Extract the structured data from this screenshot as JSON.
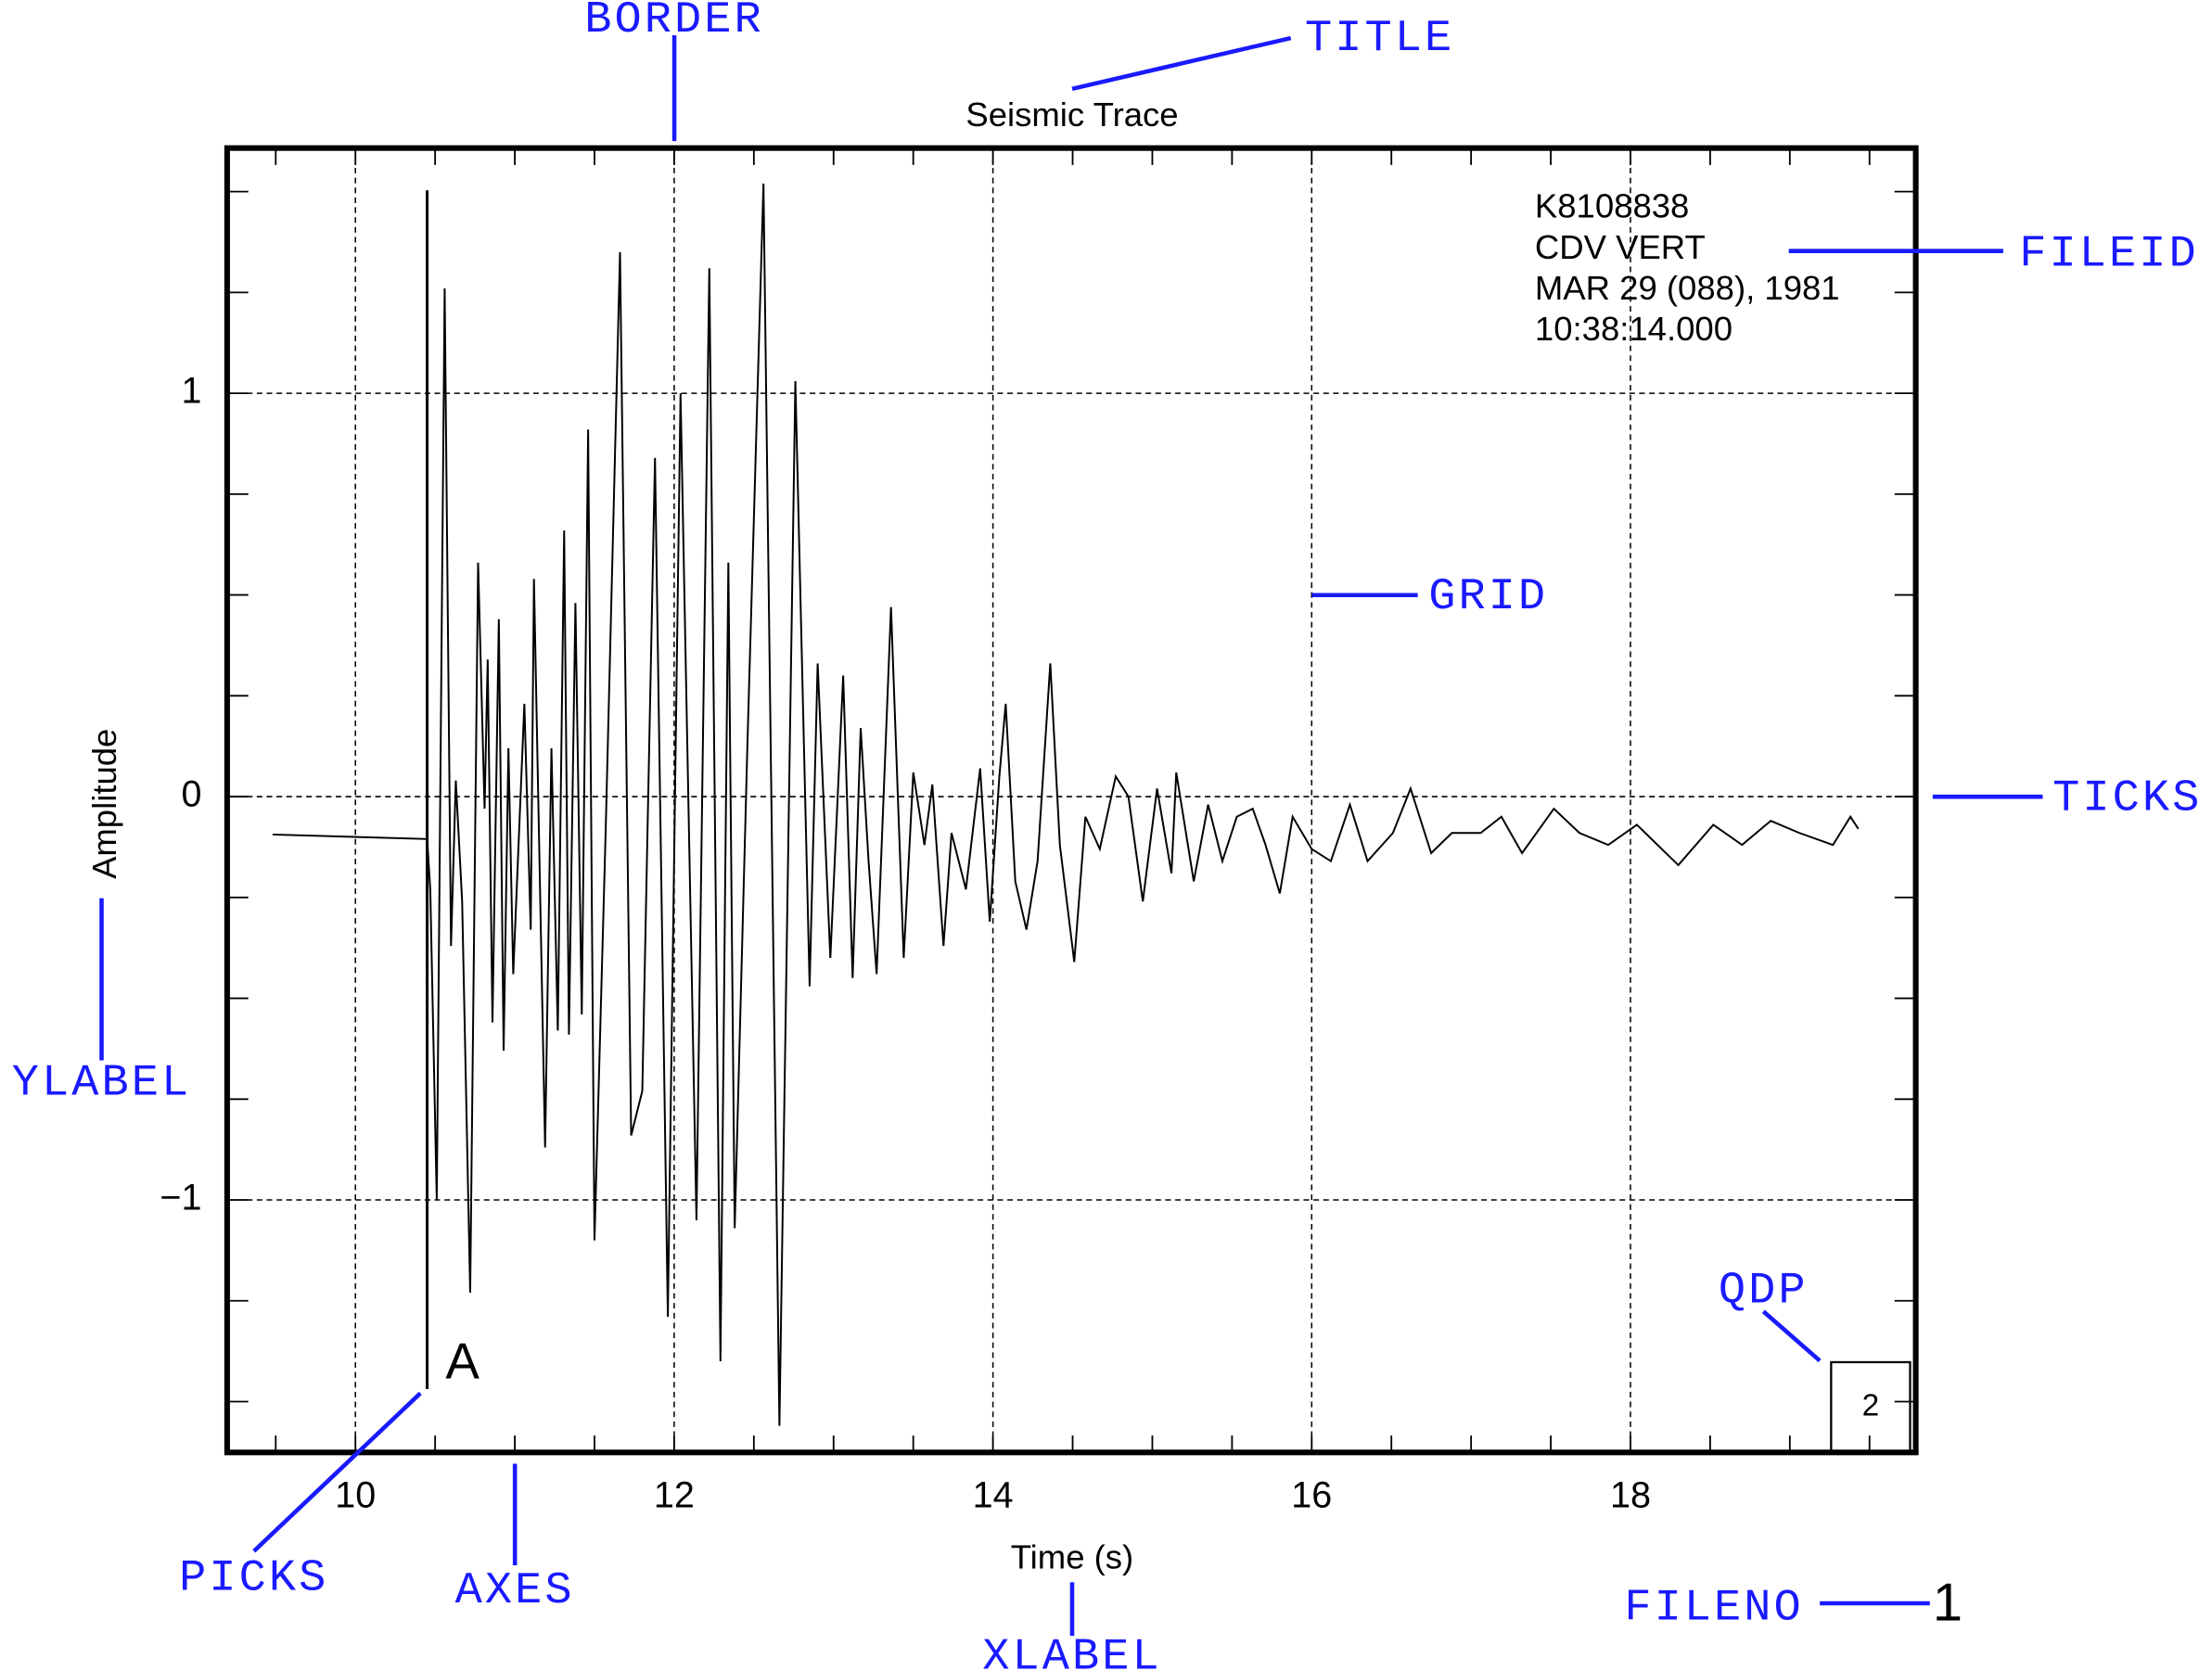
{
  "chart_data": {
    "type": "line",
    "title": "Seismic Trace",
    "xlabel": "Time (s)",
    "ylabel": "Amplitude",
    "color": "#000000",
    "grid": true,
    "xlim": [
      9.195,
      19.79
    ],
    "ylim": [
      -1.626,
      1.608
    ],
    "xticks": [
      10,
      12,
      14,
      16,
      18
    ],
    "yticks": [
      {
        "value": -1,
        "label": "−1"
      },
      0,
      1
    ],
    "xminorticks": [
      9.5,
      10,
      10.5,
      11,
      11.5,
      12,
      12.5,
      13,
      13.5,
      14,
      14.5,
      15,
      15.5,
      16,
      16.5,
      17,
      17.5,
      18,
      18.5,
      19,
      19.5
    ],
    "yminorticks": [
      -1.5,
      -1.25,
      -1,
      -0.75,
      -0.5,
      -0.25,
      0,
      0.25,
      0.5,
      0.75,
      1,
      1.25,
      1.5
    ],
    "x": [
      9.48,
      10.45,
      10.47,
      10.51,
      10.56,
      10.6,
      10.63,
      10.67,
      10.72,
      10.77,
      10.81,
      10.83,
      10.86,
      10.9,
      10.93,
      10.96,
      10.99,
      11.06,
      11.1,
      11.12,
      11.19,
      11.23,
      11.27,
      11.31,
      11.34,
      11.38,
      11.42,
      11.46,
      11.5,
      11.57,
      11.66,
      11.73,
      11.8,
      11.88,
      11.96,
      12.04,
      12.14,
      12.22,
      12.29,
      12.34,
      12.38,
      12.46,
      12.56,
      12.66,
      12.76,
      12.85,
      12.9,
      12.98,
      13.06,
      13.12,
      13.17,
      13.22,
      13.27,
      13.36,
      13.44,
      13.5,
      13.57,
      13.62,
      13.69,
      13.74,
      13.83,
      13.92,
      13.98,
      14.04,
      14.08,
      14.14,
      14.21,
      14.28,
      14.36,
      14.42,
      14.51,
      14.58,
      14.67,
      14.77,
      14.85,
      14.94,
      15.03,
      15.12,
      15.15,
      15.26,
      15.35,
      15.44,
      15.53,
      15.63,
      15.71,
      15.8,
      15.88,
      16.0,
      16.12,
      16.24,
      16.35,
      16.51,
      16.62,
      16.75,
      16.88,
      17.06,
      17.19,
      17.32,
      17.52,
      17.68,
      17.86,
      18.04,
      18.17,
      18.3,
      18.52,
      18.7,
      18.88,
      19.06,
      19.27,
      19.38,
      19.43
    ],
    "values": [
      -0.094,
      -0.105,
      -0.23,
      -1.0,
      1.26,
      -0.37,
      0.04,
      -0.26,
      -1.23,
      0.58,
      -0.03,
      0.34,
      -0.56,
      0.44,
      -0.63,
      0.12,
      -0.44,
      0.23,
      -0.33,
      0.54,
      -0.87,
      0.12,
      -0.58,
      0.66,
      -0.59,
      0.48,
      -0.54,
      0.91,
      -1.1,
      -0.09,
      1.35,
      -0.84,
      -0.73,
      0.84,
      -1.29,
      1.0,
      -1.05,
      1.31,
      -1.4,
      0.58,
      -1.07,
      0.14,
      1.52,
      -1.56,
      1.03,
      -0.47,
      0.33,
      -0.4,
      0.3,
      -0.45,
      0.17,
      -0.16,
      -0.44,
      0.47,
      -0.4,
      0.06,
      -0.12,
      0.03,
      -0.37,
      -0.09,
      -0.23,
      0.07,
      -0.31,
      0.05,
      0.23,
      -0.21,
      -0.33,
      -0.16,
      0.33,
      -0.12,
      -0.41,
      -0.05,
      -0.13,
      0.05,
      0,
      -0.26,
      0.02,
      -0.19,
      0.06,
      -0.21,
      -0.02,
      -0.16,
      -0.05,
      -0.03,
      -0.12,
      -0.24,
      -0.05,
      -0.13,
      -0.16,
      -0.02,
      -0.16,
      -0.09,
      0.02,
      -0.14,
      -0.09,
      -0.09,
      -0.05,
      -0.14,
      -0.03,
      -0.09,
      -0.12,
      -0.07,
      -0.12,
      -0.17,
      -0.07,
      -0.12,
      -0.06,
      -0.09,
      -0.12,
      -0.05,
      -0.08
    ],
    "pick": {
      "x": 10.45,
      "label": "A"
    },
    "fileid": [
      "K8108838",
      "CDV VERT",
      "MAR 29 (088), 1981",
      "10:38:14.000"
    ],
    "qdp": "2",
    "fileno": "1",
    "annotations": [
      "BORDER",
      "TITLE",
      "FILEID",
      "GRID",
      "TICKS",
      "YLABEL",
      "QDP",
      "PICKS",
      "AXES",
      "XLABEL",
      "FILENO"
    ]
  }
}
